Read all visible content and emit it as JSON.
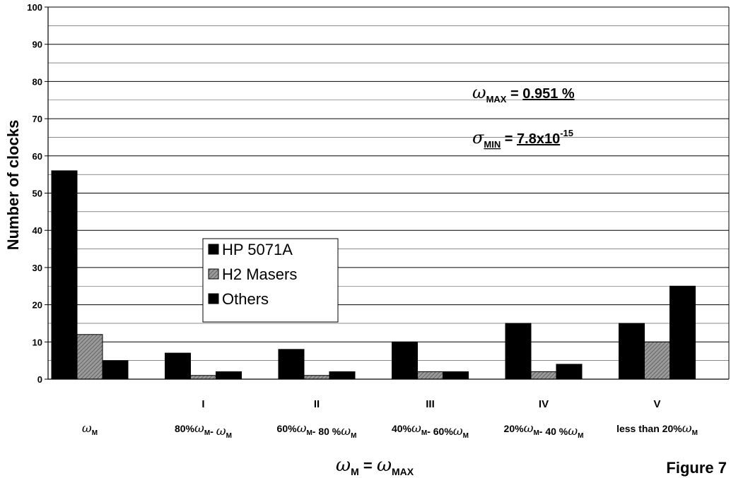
{
  "chart_data": {
    "type": "bar",
    "ylabel": "Number of clocks",
    "ylim": [
      0,
      100
    ],
    "yticks": [
      0,
      10,
      20,
      30,
      40,
      50,
      60,
      70,
      80,
      90,
      100
    ],
    "minor_grid_step": 5,
    "grid": true,
    "legend_position": "center-left",
    "categories": [
      {
        "roman": "",
        "label": "ωM"
      },
      {
        "roman": "I",
        "label": "80%ωM- ωM"
      },
      {
        "roman": "II",
        "label": "60%ωM- 80 %ωM"
      },
      {
        "roman": "III",
        "label": "40%ωM- 60%ωM"
      },
      {
        "roman": "IV",
        "label": "20%ωM- 40 %ωM"
      },
      {
        "roman": "V",
        "label": "less than 20%ωM"
      }
    ],
    "series": [
      {
        "name": "HP 5071A",
        "color": "#000000",
        "pattern": "solid",
        "values": [
          56,
          7,
          8,
          10,
          15,
          15
        ]
      },
      {
        "name": "H2 Masers",
        "color": "#7f7f7f",
        "pattern": "hatched",
        "values": [
          12,
          1,
          1,
          2,
          2,
          10
        ]
      },
      {
        "name": "Others",
        "color": "#000000",
        "pattern": "solid",
        "values": [
          5,
          2,
          2,
          2,
          4,
          25
        ]
      }
    ],
    "annotations": {
      "omega_max": "ωMAX = 0.951 %",
      "sigma_min": "σMIN = 7.8x10-15"
    },
    "xlabel": "ωM = ωMAX"
  },
  "figure_label": "Figure 7"
}
